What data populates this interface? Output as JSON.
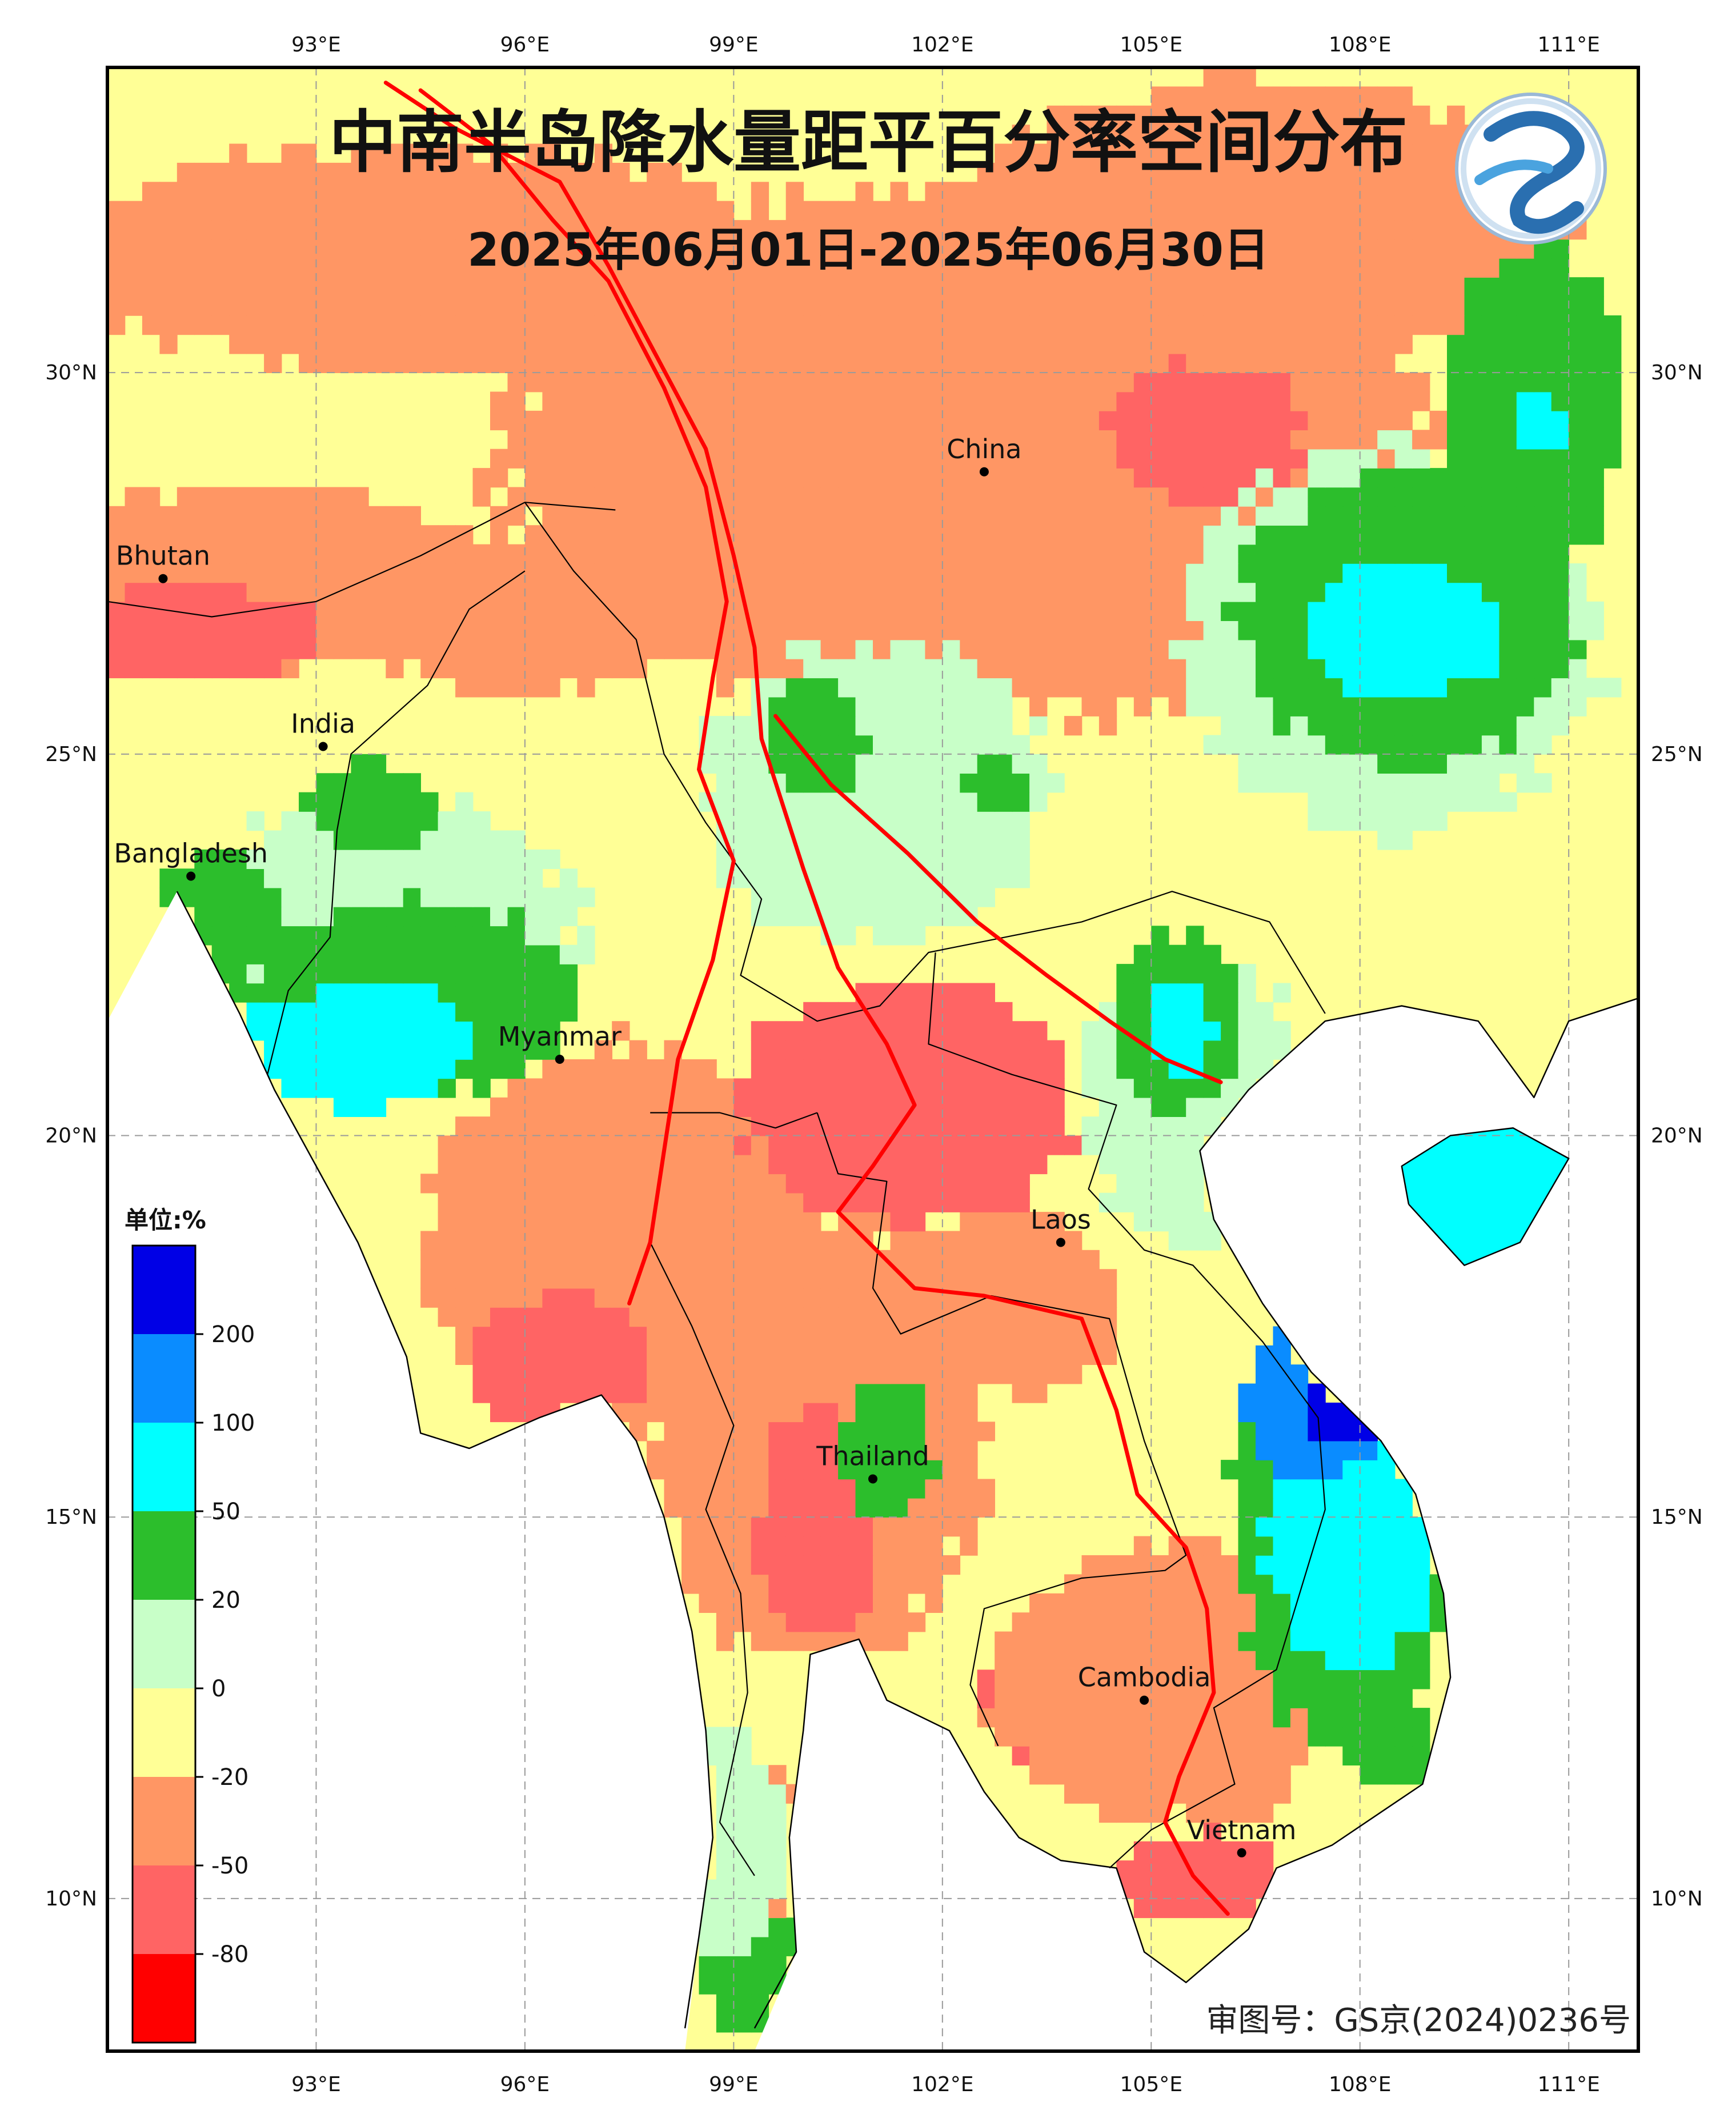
{
  "title": "中南半岛降水量距平百分率空间分布",
  "subtitle": "2025年06月01日-2025年06月30日",
  "approval_number": "审图号：GS京(2024)0236号",
  "logo": {
    "icon": "cma-dragon-logo-icon",
    "colors": [
      "#2a6fb0",
      "#4aa3df"
    ]
  },
  "axes": {
    "longitude_ticks": [
      "93°E",
      "96°E",
      "99°E",
      "102°E",
      "105°E",
      "108°E",
      "111°E"
    ],
    "latitude_ticks": [
      "30°N",
      "25°N",
      "20°N",
      "15°N",
      "10°N"
    ],
    "lon_range": [
      90,
      112
    ],
    "lat_range": [
      8,
      34
    ],
    "grid": "dashed"
  },
  "places": [
    {
      "name": "China",
      "lon": 102.6,
      "lat": 28.7
    },
    {
      "name": "Bhutan",
      "lon": 90.8,
      "lat": 27.3
    },
    {
      "name": "India",
      "lon": 93.1,
      "lat": 25.1
    },
    {
      "name": "Bangladesh",
      "lon": 91.2,
      "lat": 23.4
    },
    {
      "name": "Myanmar",
      "lon": 96.5,
      "lat": 21.0
    },
    {
      "name": "Laos",
      "lon": 103.7,
      "lat": 18.6
    },
    {
      "name": "Thailand",
      "lon": 101.0,
      "lat": 15.5
    },
    {
      "name": "Cambodia",
      "lon": 104.9,
      "lat": 12.6
    },
    {
      "name": "Vietnam",
      "lon": 106.3,
      "lat": 10.6
    }
  ],
  "legend": {
    "unit": "单位:%",
    "tick_labels": [
      "200",
      "100",
      "50",
      "20",
      "0",
      "-20",
      "-50",
      "-80"
    ],
    "bins": [
      {
        "range": "> 200",
        "color": "#0000e6"
      },
      {
        "range": "100 ~ 200",
        "color": "#0a8cff"
      },
      {
        "range": "50 ~ 100",
        "color": "#00ffff"
      },
      {
        "range": "20 ~ 50",
        "color": "#2cbe2c"
      },
      {
        "range": "0 ~ 20",
        "color": "#c8ffc8"
      },
      {
        "range": "-20 ~ 0",
        "color": "#ffff96"
      },
      {
        "range": "-50 ~ -20",
        "color": "#ff9664"
      },
      {
        "range": "-80 ~ -50",
        "color": "#ff6464"
      },
      {
        "range": "< -80",
        "color": "#ff0000"
      }
    ]
  },
  "river_color": "#ff0000",
  "regions": [
    {
      "label": "North China basin dry",
      "bin": 6,
      "center": [
        102.5,
        29.0
      ],
      "radius": [
        7.0,
        3.5
      ]
    },
    {
      "label": "Sichuan dry core",
      "bin": 7,
      "center": [
        105.8,
        29.2
      ],
      "radius": [
        1.4,
        1.0
      ]
    },
    {
      "label": "Northwest dry band",
      "bin": 6,
      "center": [
        94.5,
        31.5
      ],
      "radius": [
        5.0,
        1.5
      ]
    },
    {
      "label": "Northeast dry",
      "bin": 6,
      "center": [
        106.5,
        32.0
      ],
      "radius": [
        4.5,
        1.8
      ]
    },
    {
      "label": "Bhutan dry",
      "bin": 6,
      "center": [
        92.0,
        27.3
      ],
      "radius": [
        3.5,
        1.2
      ]
    },
    {
      "label": "Bhutan very dry",
      "bin": 7,
      "center": [
        91.2,
        26.6
      ],
      "radius": [
        1.8,
        0.6
      ]
    },
    {
      "label": "Myanmar north dry",
      "bin": 6,
      "center": [
        96.0,
        26.8
      ],
      "radius": [
        2.5,
        1.0
      ]
    },
    {
      "label": "Central Myanmar dry",
      "bin": 6,
      "center": [
        97.5,
        18.6
      ],
      "radius": [
        3.0,
        2.6
      ]
    },
    {
      "label": "South Myanmar very dry",
      "bin": 7,
      "center": [
        96.5,
        17.0
      ],
      "radius": [
        1.4,
        0.9
      ]
    },
    {
      "label": "Thailand north very dry",
      "bin": 7,
      "center": [
        101.5,
        20.4
      ],
      "radius": [
        2.4,
        1.6
      ]
    },
    {
      "label": "Thailand dry",
      "bin": 6,
      "center": [
        100.2,
        16.0
      ],
      "radius": [
        2.4,
        3.0
      ]
    },
    {
      "label": "Thailand central very dry",
      "bin": 7,
      "center": [
        100.2,
        15.0
      ],
      "radius": [
        0.9,
        1.5
      ]
    },
    {
      "label": "Laos dry",
      "bin": 6,
      "center": [
        102.8,
        17.8
      ],
      "radius": [
        1.8,
        1.2
      ]
    },
    {
      "label": "Cambodia very dry",
      "bin": 7,
      "center": [
        104.6,
        12.6
      ],
      "radius": [
        2.0,
        1.4
      ]
    },
    {
      "label": "Cambodia dry ring",
      "bin": 6,
      "center": [
        105.3,
        12.8
      ],
      "radius": [
        2.6,
        1.8
      ]
    },
    {
      "label": "Peninsula dry",
      "bin": 6,
      "center": [
        99.3,
        10.5
      ],
      "radius": [
        1.2,
        1.3
      ]
    },
    {
      "label": "Southern Mekong dry",
      "bin": 7,
      "center": [
        105.6,
        10.3
      ],
      "radius": [
        1.2,
        0.6
      ]
    },
    {
      "label": "Yunnan wet",
      "bin": 4,
      "center": [
        101.0,
        24.5
      ],
      "radius": [
        2.5,
        2.0
      ]
    },
    {
      "label": "Yunnan green",
      "bin": 3,
      "center": [
        100.2,
        25.3
      ],
      "radius": [
        0.7,
        0.8
      ]
    },
    {
      "label": "Yunnan green 2",
      "bin": 3,
      "center": [
        102.8,
        24.6
      ],
      "radius": [
        0.4,
        0.5
      ]
    },
    {
      "label": "Myanmar west wet",
      "bin": 4,
      "center": [
        94.0,
        22.5
      ],
      "radius": [
        2.8,
        2.0
      ]
    },
    {
      "label": "Myanmar west green",
      "bin": 3,
      "center": [
        94.3,
        21.8
      ],
      "radius": [
        2.4,
        1.3
      ]
    },
    {
      "label": "Myanmar west cyan",
      "bin": 2,
      "center": [
        93.6,
        21.2
      ],
      "radius": [
        1.6,
        0.8
      ]
    },
    {
      "label": "Myanmar NE green",
      "bin": 3,
      "center": [
        93.8,
        24.3
      ],
      "radius": [
        1.0,
        0.6
      ]
    },
    {
      "label": "Bangladesh green",
      "bin": 3,
      "center": [
        91.6,
        22.8
      ],
      "radius": [
        0.9,
        0.9
      ]
    },
    {
      "label": "Guangxi wet",
      "bin": 4,
      "center": [
        108.5,
        26.5
      ],
      "radius": [
        3.0,
        2.5
      ]
    },
    {
      "label": "Guangxi green",
      "bin": 3,
      "center": [
        108.7,
        26.8
      ],
      "radius": [
        2.4,
        2.0
      ]
    },
    {
      "label": "Guangxi cyan",
      "bin": 2,
      "center": [
        108.6,
        26.6
      ],
      "radius": [
        1.4,
        0.9
      ]
    },
    {
      "label": "East green band",
      "bin": 3,
      "center": [
        110.5,
        29.5
      ],
      "radius": [
        1.3,
        2.2
      ]
    },
    {
      "label": "East cyan",
      "bin": 2,
      "center": [
        110.6,
        29.3
      ],
      "radius": [
        0.4,
        0.4
      ]
    },
    {
      "label": "North Vietnam wet",
      "bin": 4,
      "center": [
        105.6,
        20.5
      ],
      "radius": [
        1.6,
        2.0
      ]
    },
    {
      "label": "North Vietnam green",
      "bin": 3,
      "center": [
        105.4,
        21.5
      ],
      "radius": [
        0.9,
        1.2
      ]
    },
    {
      "label": "North Vietnam cyan",
      "bin": 2,
      "center": [
        105.4,
        21.4
      ],
      "radius": [
        0.5,
        0.6
      ]
    },
    {
      "label": "Hainan green",
      "bin": 3,
      "center": [
        109.5,
        19.3
      ],
      "radius": [
        1.8,
        1.3
      ]
    },
    {
      "label": "Hainan cyan",
      "bin": 2,
      "center": [
        109.4,
        18.8
      ],
      "radius": [
        1.6,
        0.8
      ]
    },
    {
      "label": "Central Vietnam green",
      "bin": 3,
      "center": [
        107.8,
        15.0
      ],
      "radius": [
        1.6,
        3.0
      ]
    },
    {
      "label": "Central Vietnam cyan",
      "bin": 2,
      "center": [
        107.9,
        15.0
      ],
      "radius": [
        1.3,
        2.0
      ]
    },
    {
      "label": "Central Vietnam blue",
      "bin": 1,
      "center": [
        107.3,
        16.5
      ],
      "radius": [
        1.0,
        1.0
      ]
    },
    {
      "label": "Central Vietnam dark blue",
      "bin": 0,
      "center": [
        107.7,
        16.5
      ],
      "radius": [
        0.6,
        0.6
      ]
    },
    {
      "label": "Thailand east green",
      "bin": 3,
      "center": [
        101.2,
        15.9
      ],
      "radius": [
        0.7,
        0.9
      ]
    },
    {
      "label": "Peninsula green",
      "bin": 3,
      "center": [
        99.5,
        9.0
      ],
      "radius": [
        1.0,
        0.9
      ]
    },
    {
      "label": "Peninsula light green",
      "bin": 4,
      "center": [
        98.8,
        10.8
      ],
      "radius": [
        0.9,
        1.5
      ]
    },
    {
      "label": "South Vietnam green",
      "bin": 3,
      "center": [
        108.5,
        12.0
      ],
      "radius": [
        0.6,
        0.6
      ]
    }
  ],
  "rivers": [
    {
      "name": "Salween",
      "points": [
        [
          94.5,
          33.7
        ],
        [
          95.5,
          33.0
        ],
        [
          96.4,
          32.0
        ],
        [
          97.2,
          31.2
        ],
        [
          98.0,
          29.8
        ],
        [
          98.6,
          28.5
        ],
        [
          98.9,
          27.0
        ],
        [
          98.7,
          26.0
        ],
        [
          98.5,
          24.8
        ],
        [
          99.0,
          23.6
        ],
        [
          98.7,
          22.3
        ],
        [
          98.2,
          21.0
        ],
        [
          98.0,
          19.8
        ],
        [
          97.8,
          18.6
        ],
        [
          97.5,
          17.8
        ]
      ]
    },
    {
      "name": "Mekong",
      "points": [
        [
          94.0,
          33.8
        ],
        [
          95.0,
          33.2
        ],
        [
          96.5,
          32.5
        ],
        [
          97.2,
          31.4
        ],
        [
          97.9,
          30.2
        ],
        [
          98.6,
          29.0
        ],
        [
          99.0,
          27.6
        ],
        [
          99.3,
          26.4
        ],
        [
          99.4,
          25.2
        ],
        [
          100.0,
          23.5
        ],
        [
          100.5,
          22.2
        ],
        [
          101.2,
          21.2
        ],
        [
          101.6,
          20.4
        ],
        [
          101.0,
          19.6
        ],
        [
          100.5,
          19.0
        ],
        [
          101.6,
          18.0
        ],
        [
          102.6,
          17.9
        ],
        [
          104.0,
          17.6
        ],
        [
          104.5,
          16.4
        ],
        [
          104.8,
          15.3
        ],
        [
          105.5,
          14.6
        ],
        [
          105.8,
          13.8
        ],
        [
          105.9,
          12.7
        ],
        [
          105.4,
          11.6
        ],
        [
          105.2,
          11.0
        ],
        [
          105.6,
          10.3
        ],
        [
          106.1,
          9.8
        ]
      ]
    },
    {
      "name": "Red",
      "points": [
        [
          99.6,
          25.5
        ],
        [
          100.4,
          24.6
        ],
        [
          101.5,
          23.7
        ],
        [
          102.5,
          22.8
        ],
        [
          103.5,
          22.1
        ],
        [
          104.4,
          21.5
        ],
        [
          105.2,
          21.0
        ],
        [
          106.0,
          20.7
        ]
      ]
    }
  ],
  "coast": [
    [
      91.0,
      23.2
    ],
    [
      91.9,
      21.6
    ],
    [
      92.4,
      20.6
    ],
    [
      93.0,
      19.6
    ],
    [
      93.6,
      18.6
    ],
    [
      94.3,
      17.1
    ],
    [
      94.5,
      16.1
    ],
    [
      95.2,
      15.9
    ],
    [
      96.2,
      16.3
    ],
    [
      97.1,
      16.6
    ],
    [
      97.6,
      16.0
    ],
    [
      98.0,
      15.0
    ],
    [
      98.4,
      13.5
    ],
    [
      98.6,
      12.2
    ],
    [
      98.7,
      10.8
    ],
    [
      98.5,
      9.5
    ],
    [
      98.3,
      8.3
    ]
  ],
  "coast_east": [
    [
      99.3,
      8.3
    ],
    [
      99.9,
      9.3
    ],
    [
      99.8,
      10.8
    ],
    [
      100.0,
      12.2
    ],
    [
      100.1,
      13.2
    ],
    [
      100.8,
      13.4
    ],
    [
      101.2,
      12.6
    ],
    [
      102.1,
      12.2
    ],
    [
      102.6,
      11.4
    ],
    [
      103.1,
      10.8
    ],
    [
      103.7,
      10.5
    ],
    [
      104.5,
      10.4
    ],
    [
      104.9,
      9.3
    ],
    [
      105.5,
      8.9
    ],
    [
      106.4,
      9.6
    ],
    [
      106.8,
      10.4
    ],
    [
      107.6,
      10.7
    ],
    [
      108.9,
      11.5
    ],
    [
      109.3,
      12.9
    ],
    [
      109.2,
      14.0
    ],
    [
      108.8,
      15.3
    ],
    [
      108.3,
      16.0
    ],
    [
      107.3,
      16.9
    ],
    [
      106.6,
      17.8
    ],
    [
      105.9,
      18.9
    ],
    [
      105.7,
      19.8
    ],
    [
      106.4,
      20.6
    ],
    [
      107.5,
      21.5
    ],
    [
      108.6,
      21.7
    ],
    [
      109.7,
      21.5
    ],
    [
      110.5,
      20.5
    ],
    [
      111.0,
      21.5
    ],
    [
      112.0,
      21.8
    ]
  ],
  "hainan": [
    [
      108.7,
      19.1
    ],
    [
      109.5,
      18.3
    ],
    [
      110.3,
      18.6
    ],
    [
      111.0,
      19.7
    ],
    [
      110.2,
      20.1
    ],
    [
      109.3,
      20.0
    ],
    [
      108.6,
      19.6
    ],
    [
      108.7,
      19.1
    ]
  ]
}
